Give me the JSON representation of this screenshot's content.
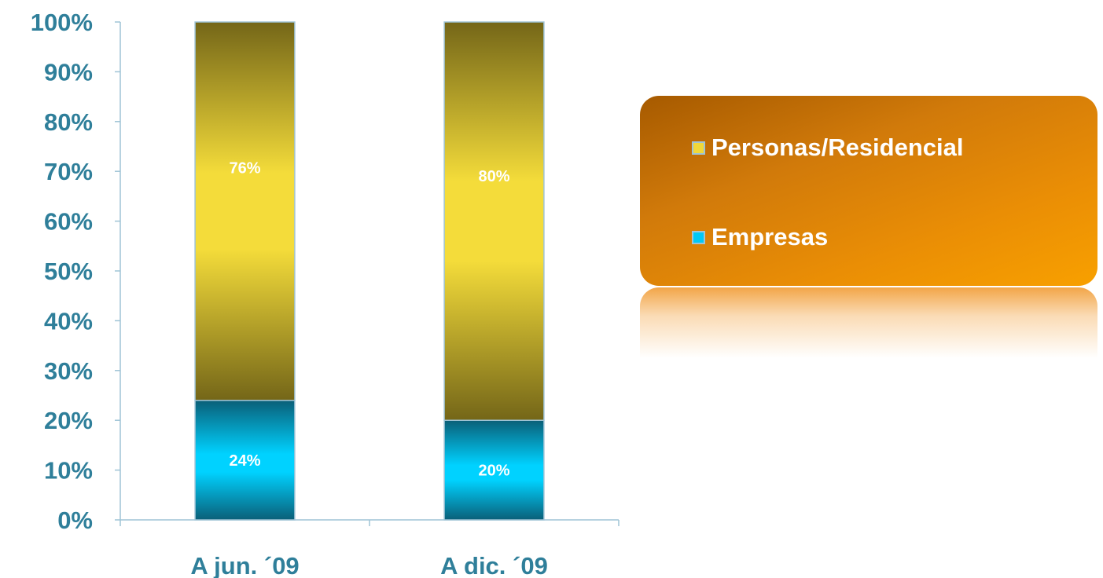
{
  "chart_data": {
    "type": "bar",
    "stacked": true,
    "categories": [
      "A jun. ´09",
      "A dic. ´09"
    ],
    "series": [
      {
        "name": "Empresas",
        "values": [
          24,
          20
        ],
        "labels": [
          "24%",
          "20%"
        ],
        "color": "#00c8f5"
      },
      {
        "name": "Personas/Residencial",
        "values": [
          76,
          80
        ],
        "labels": [
          "76%",
          "80%"
        ],
        "color": "#f0d838"
      }
    ],
    "ylim": [
      0,
      100
    ],
    "yticks": [
      "0%",
      "10%",
      "20%",
      "30%",
      "40%",
      "50%",
      "60%",
      "70%",
      "80%",
      "90%",
      "100%"
    ],
    "grid": false,
    "legend_position": "right",
    "colors": {
      "axis_text": "#2f7f9a",
      "axis_line": "#9fc4d6"
    }
  },
  "legend": {
    "items": [
      {
        "label": "Personas/Residencial",
        "swatch": "#f0d838"
      },
      {
        "label": "Empresas",
        "swatch": "#00c8f5"
      }
    ]
  }
}
